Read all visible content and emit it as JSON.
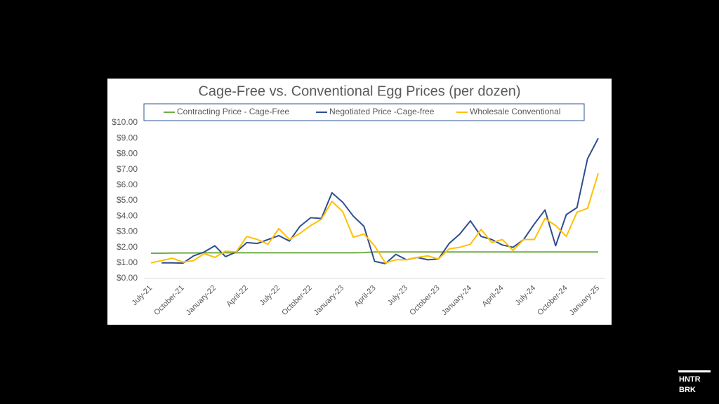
{
  "chart_data": {
    "type": "line",
    "title": "Cage-Free vs. Conventional Egg Prices (per dozen)",
    "categories": [
      "July-21",
      null,
      null,
      "October-21",
      null,
      null,
      "January-22",
      null,
      null,
      "April-22",
      null,
      null,
      "July-22",
      null,
      null,
      "October-22",
      null,
      null,
      "January-23",
      null,
      null,
      "April-23",
      null,
      null,
      "July-23",
      null,
      null,
      "October-23",
      null,
      null,
      "January-24",
      null,
      null,
      "April-24",
      null,
      null,
      "July-24",
      null,
      null,
      "October-24",
      null,
      null,
      "January-25"
    ],
    "series": [
      {
        "name": "Contracting Price - Cage-Free",
        "color": "#70ad47",
        "values": [
          1.62,
          1.62,
          1.63,
          1.64,
          1.64,
          1.65,
          1.65,
          1.65,
          1.65,
          1.65,
          1.65,
          1.65,
          1.65,
          1.65,
          1.65,
          1.65,
          1.65,
          1.65,
          1.65,
          1.65,
          1.66,
          1.7,
          1.7,
          1.7,
          1.7,
          1.7,
          1.7,
          1.7,
          1.7,
          1.7,
          1.7,
          1.7,
          1.7,
          1.7,
          1.7,
          1.7,
          1.7,
          1.7,
          1.7,
          1.7,
          1.7,
          1.7,
          1.7
        ]
      },
      {
        "name": "Negotiated Price -Cage-free",
        "color": "#2f4e8f",
        "values": [
          null,
          1.0,
          1.0,
          0.98,
          1.45,
          1.7,
          2.1,
          1.4,
          1.7,
          2.3,
          2.25,
          2.5,
          2.75,
          2.4,
          3.35,
          3.9,
          3.85,
          5.5,
          4.9,
          4.0,
          3.35,
          1.1,
          0.95,
          1.55,
          1.2,
          1.35,
          1.2,
          1.25,
          2.25,
          2.85,
          3.7,
          2.7,
          2.5,
          2.15,
          2.0,
          2.5,
          3.5,
          4.4,
          2.1,
          4.1,
          4.55,
          7.7,
          9.0
        ]
      },
      {
        "name": "Wholesale Conventional",
        "color": "#ffc000",
        "values": [
          1.0,
          1.15,
          1.3,
          1.05,
          1.15,
          1.6,
          1.35,
          1.75,
          1.7,
          2.7,
          2.5,
          2.2,
          3.2,
          2.5,
          2.9,
          3.4,
          3.8,
          4.95,
          4.3,
          2.65,
          2.85,
          2.1,
          1.0,
          1.2,
          1.2,
          1.35,
          1.45,
          1.25,
          1.9,
          2.0,
          2.2,
          3.15,
          2.3,
          2.5,
          1.8,
          2.5,
          2.5,
          3.85,
          3.4,
          2.7,
          4.25,
          4.5,
          6.75
        ]
      }
    ],
    "ylim": [
      0,
      10
    ],
    "yticks": [
      {
        "value": 0,
        "label": "$0.00"
      },
      {
        "value": 1,
        "label": "$1.00"
      },
      {
        "value": 2,
        "label": "$2.00"
      },
      {
        "value": 3,
        "label": "$3.00"
      },
      {
        "value": 4,
        "label": "$4.00"
      },
      {
        "value": 5,
        "label": "$5.00"
      },
      {
        "value": 6,
        "label": "$6.00"
      },
      {
        "value": 7,
        "label": "$7.00"
      },
      {
        "value": 8,
        "label": "$8.00"
      },
      {
        "value": 9,
        "label": "$9.00"
      },
      {
        "value": 10,
        "label": "$10.00"
      }
    ],
    "legend": "top",
    "grid": false
  },
  "logo": [
    "HNTR",
    "BRK"
  ]
}
